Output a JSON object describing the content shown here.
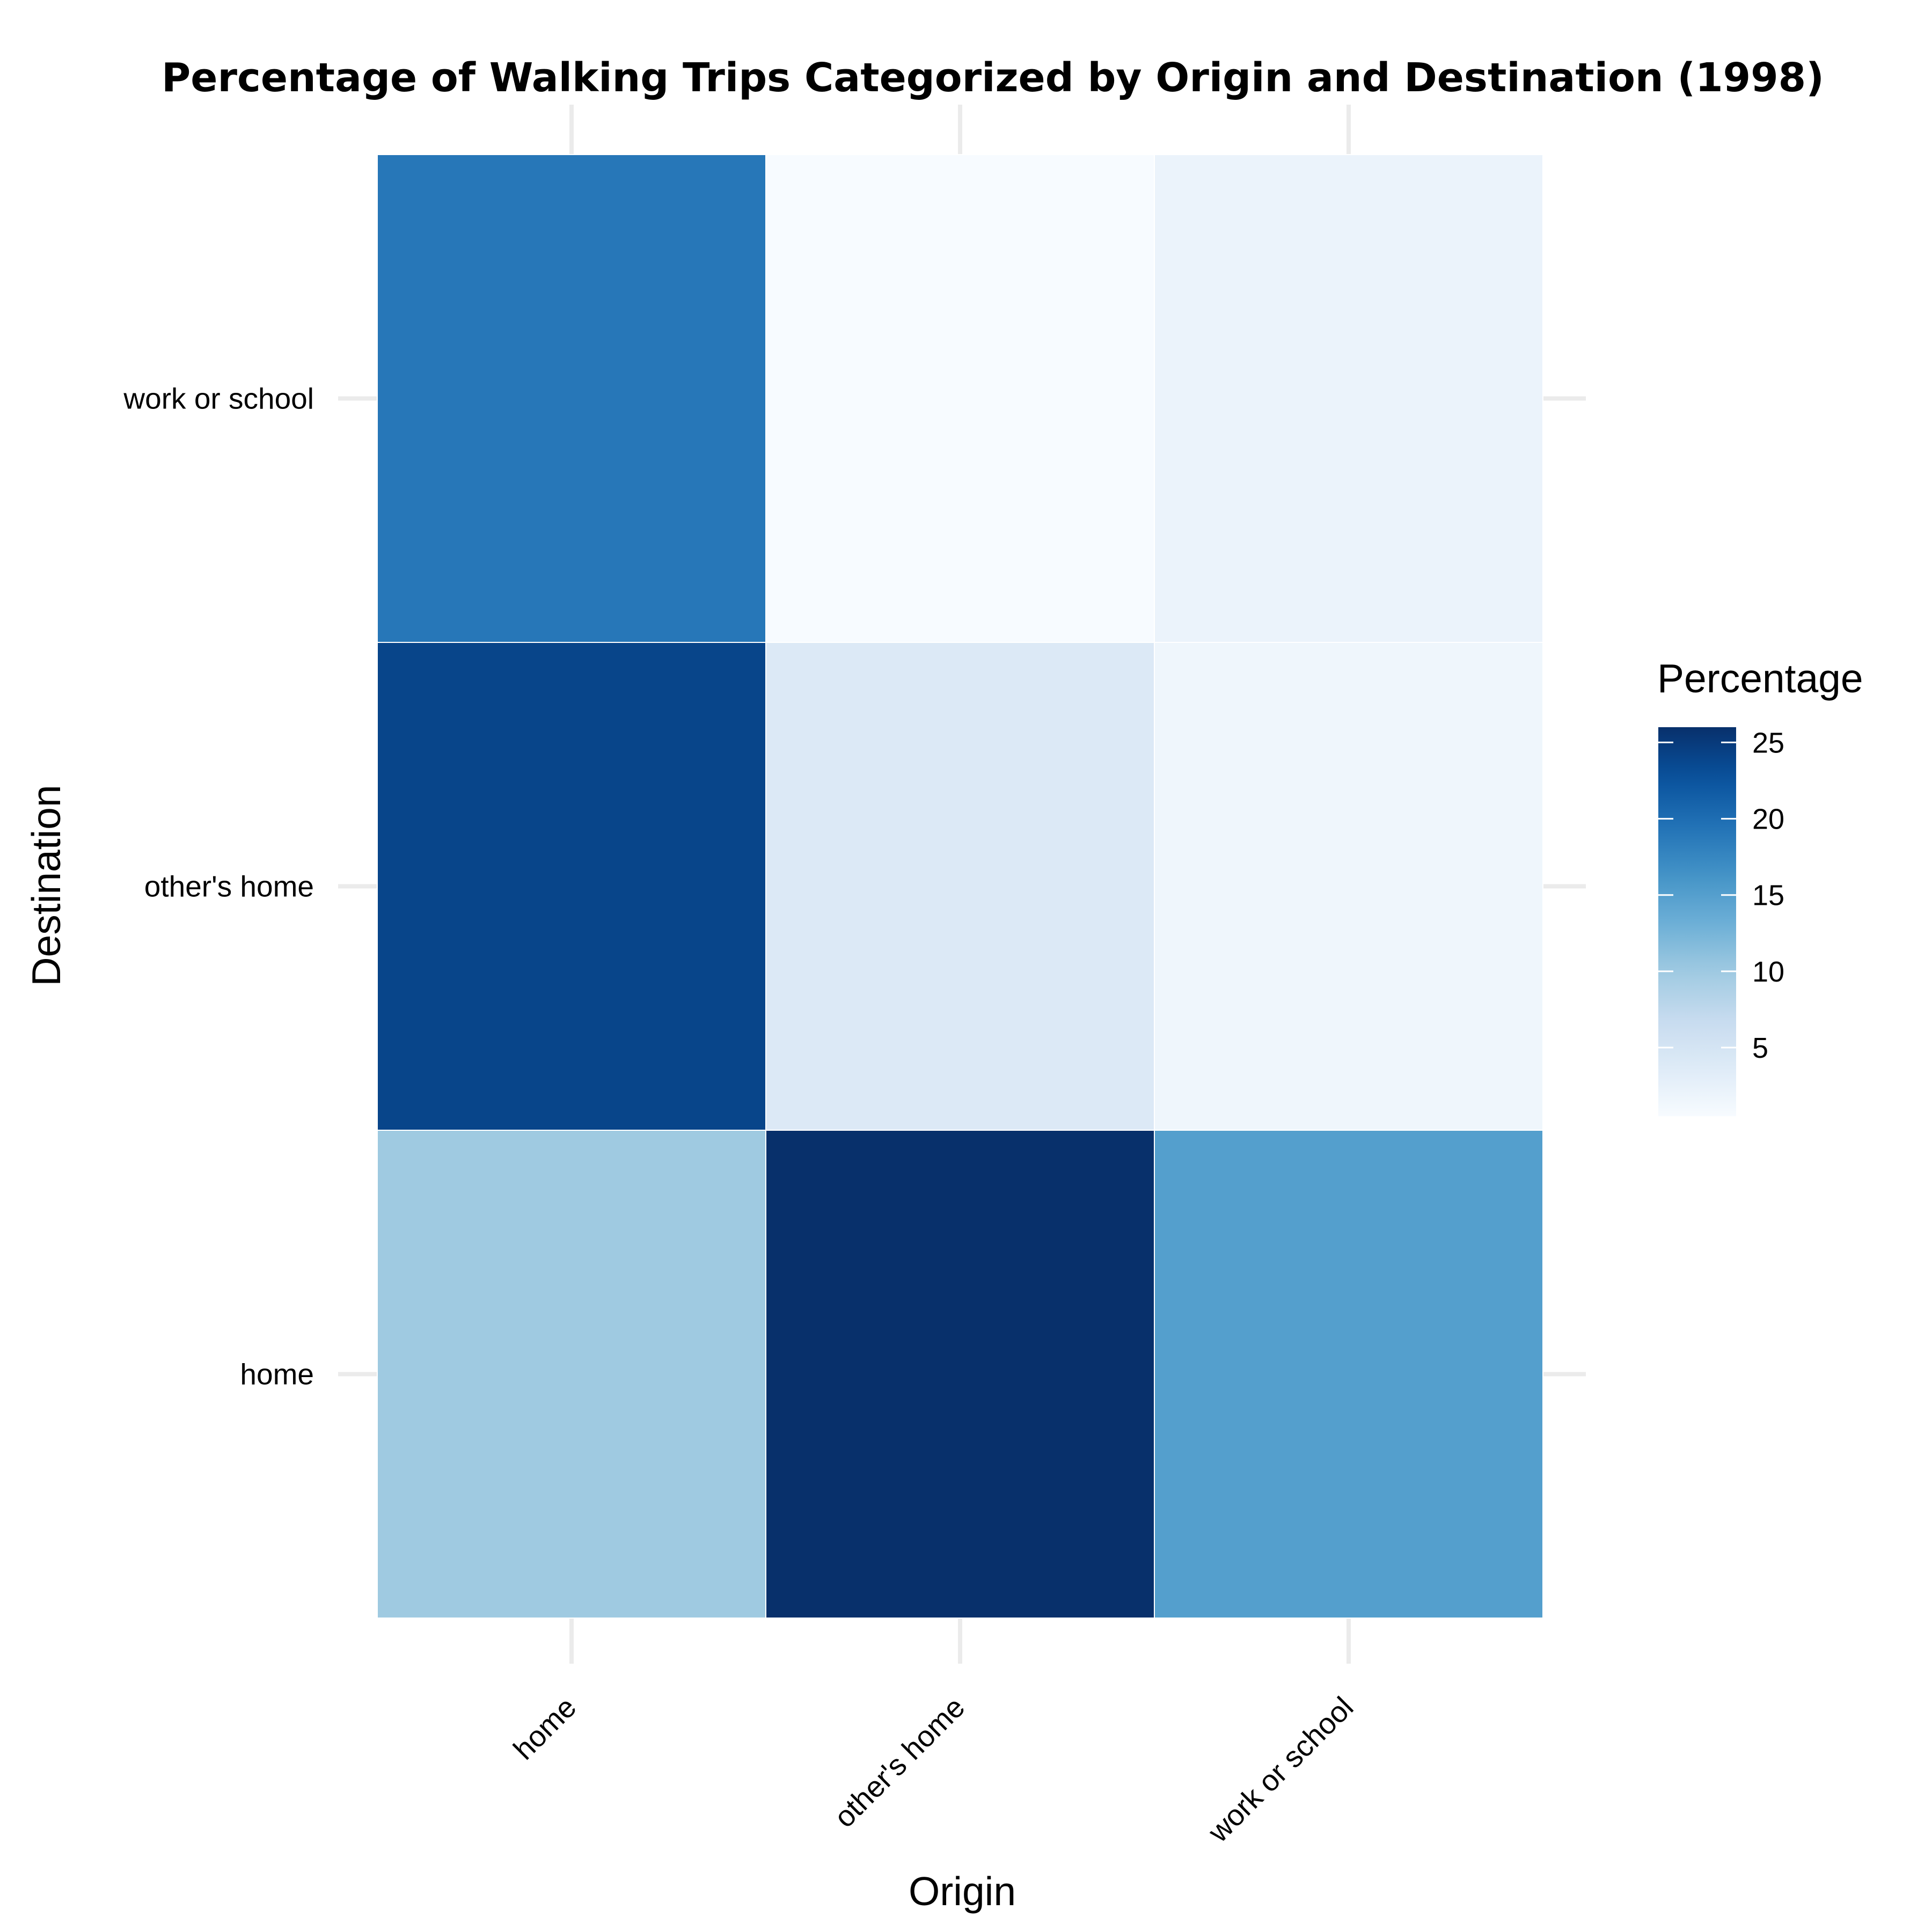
{
  "chart_data": {
    "type": "heatmap",
    "title": "Percentage of Walking Trips Categorized by Origin and Destination (1998)",
    "xlabel": "Origin",
    "ylabel": "Destination",
    "x_categories": [
      "home",
      "other's home",
      "work or school"
    ],
    "y_categories": [
      "home",
      "other's home",
      "work or school"
    ],
    "cells": [
      {
        "origin": "home",
        "destination": "home",
        "value": 10
      },
      {
        "origin": "other's home",
        "destination": "home",
        "value": 26
      },
      {
        "origin": "work or school",
        "destination": "home",
        "value": 15
      },
      {
        "origin": "home",
        "destination": "other's home",
        "value": 24
      },
      {
        "origin": "other's home",
        "destination": "other's home",
        "value": 4
      },
      {
        "origin": "work or school",
        "destination": "other's home",
        "value": 1.5
      },
      {
        "origin": "home",
        "destination": "work or school",
        "value": 19
      },
      {
        "origin": "other's home",
        "destination": "work or school",
        "value": 0.5
      },
      {
        "origin": "work or school",
        "destination": "work or school",
        "value": 2
      }
    ],
    "legend": {
      "title": "Percentage",
      "ticks": [
        5,
        10,
        15,
        20,
        25
      ],
      "min": 0.5,
      "max": 26,
      "placement": "right"
    },
    "colors": {
      "low": "#f7fbff",
      "high": "#08306b",
      "gridline": "#ebebeb"
    },
    "grid": true
  }
}
